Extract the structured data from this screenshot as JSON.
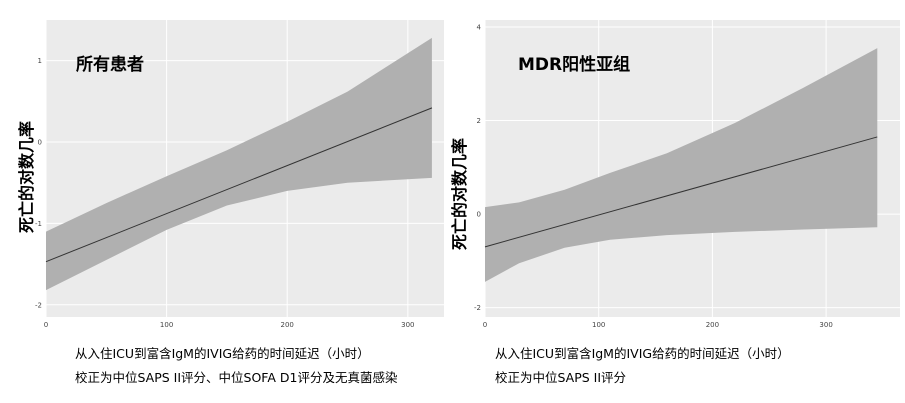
{
  "chart_data": [
    {
      "type": "line",
      "panel_label": "所有患者",
      "ylabel": "死亡的对数几率",
      "xlabel": "从入住ICU到富含IgM的IVIG给药的时间延迟（小时）",
      "note": "校正为中位SAPS II评分、中位SOFA D1评分及无真菌感染",
      "xlim": [
        0,
        330
      ],
      "ylim": [
        -2.15,
        1.5
      ],
      "x_ticks": [
        0,
        100,
        200,
        300
      ],
      "y_ticks": [
        -2,
        -1,
        0,
        1
      ],
      "x_tick_labels": [
        "0",
        "100",
        "200",
        "300"
      ],
      "y_tick_labels": [
        "-2",
        "-1",
        "0",
        "1"
      ],
      "grid": true,
      "line": {
        "x": [
          0,
          320
        ],
        "y": [
          -1.47,
          0.42
        ]
      },
      "band_upper": {
        "x": [
          0,
          50,
          100,
          150,
          200,
          250,
          320
        ],
        "y": [
          -1.1,
          -0.75,
          -0.42,
          -0.1,
          0.25,
          0.62,
          1.28
        ]
      },
      "band_lower": {
        "x": [
          0,
          50,
          100,
          150,
          200,
          250,
          320
        ],
        "y": [
          -1.82,
          -1.45,
          -1.08,
          -0.78,
          -0.6,
          -0.5,
          -0.44
        ]
      },
      "colors": {
        "panel_bg": "#ebebeb",
        "band": "#b0b0b0",
        "line": "#333333",
        "grid": "#ffffff"
      }
    },
    {
      "type": "line",
      "panel_label": "MDR阳性亚组",
      "ylabel": "死亡的对数几率",
      "xlabel": "从入住ICU到富含IgM的IVIG给药的时间延迟（小时）",
      "note": "校正为中位SAPS II评分",
      "xlim": [
        0,
        365
      ],
      "ylim": [
        -2.2,
        4.15
      ],
      "x_ticks": [
        0,
        100,
        200,
        300
      ],
      "y_ticks": [
        -2,
        0,
        2,
        4
      ],
      "x_tick_labels": [
        "0",
        "100",
        "200",
        "300"
      ],
      "y_tick_labels": [
        "-2",
        "0",
        "2",
        "4"
      ],
      "grid": true,
      "line": {
        "x": [
          0,
          345
        ],
        "y": [
          -0.7,
          1.65
        ]
      },
      "band_upper": {
        "x": [
          0,
          30,
          70,
          110,
          160,
          220,
          280,
          345
        ],
        "y": [
          0.15,
          0.25,
          0.52,
          0.88,
          1.3,
          1.95,
          2.7,
          3.55
        ]
      },
      "band_lower": {
        "x": [
          0,
          30,
          70,
          110,
          160,
          220,
          280,
          345
        ],
        "y": [
          -1.45,
          -1.05,
          -0.72,
          -0.55,
          -0.45,
          -0.38,
          -0.33,
          -0.28
        ]
      },
      "colors": {
        "panel_bg": "#ebebeb",
        "band": "#b0b0b0",
        "line": "#333333",
        "grid": "#ffffff"
      }
    }
  ]
}
